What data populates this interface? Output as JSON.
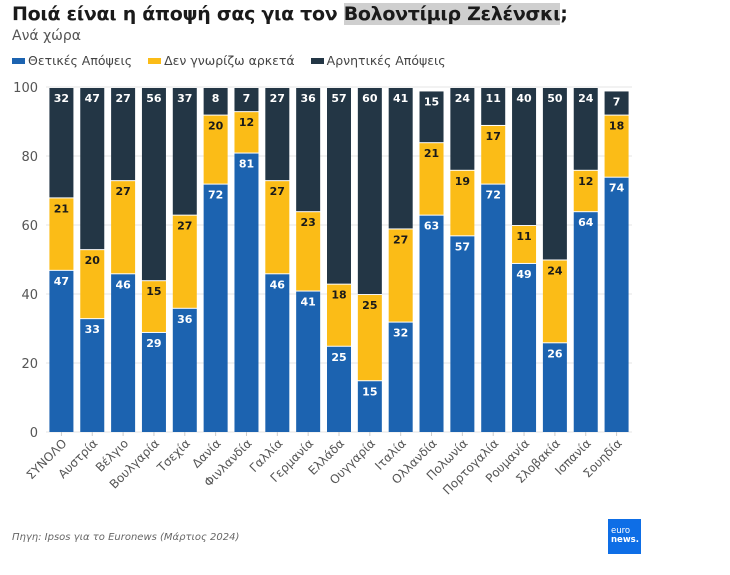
{
  "header": {
    "title_prefix": "Ποιά είναι η άποψή σας για τον ",
    "title_highlight": "Βολοντίμιρ Ζελένσκι",
    "title_suffix": ";",
    "subtitle": "Ανά χώρα"
  },
  "colors": {
    "positive": "#1c63b0",
    "unknown": "#fbbc17",
    "negative": "#233645",
    "grid": "#e6e6e6",
    "axis_text": "#555555"
  },
  "chart_data": {
    "type": "bar",
    "stacked": true,
    "title": "Ποιά είναι η άποψή σας για τον Βολοντίμιρ Ζελένσκι;",
    "subtitle": "Ανά χώρα",
    "xlabel": "",
    "ylabel": "",
    "ylim": [
      0,
      100
    ],
    "yticks": [
      0,
      20,
      40,
      60,
      80,
      100
    ],
    "grid": true,
    "legend_position": "top-left",
    "categories": [
      "ΣΥΝΟΛΟ",
      "Αυστρία",
      "Βέλγιο",
      "Βουλγαρία",
      "Τσεχία",
      "Δανία",
      "Φινλανδία",
      "Γαλλία",
      "Γερμανία",
      "Ελλάδα",
      "Ουγγαρία",
      "Ιταλία",
      "Ολλανδία",
      "Πολωνία",
      "Πορτογαλία",
      "Ρουμανία",
      "Σλοβακία",
      "Ισπανία",
      "Σουηδία"
    ],
    "series": [
      {
        "name": "Θετικές Απόψεις",
        "color": "#1c63b0",
        "label_color": "#ffffff",
        "values": [
          47,
          33,
          46,
          29,
          36,
          72,
          81,
          46,
          41,
          25,
          15,
          32,
          63,
          57,
          72,
          49,
          26,
          64,
          74
        ]
      },
      {
        "name": "Δεν γνωρίζω αρκετά",
        "color": "#fbbc17",
        "label_color": "#1a1a1a",
        "values": [
          21,
          20,
          27,
          15,
          27,
          20,
          12,
          27,
          23,
          18,
          25,
          27,
          21,
          19,
          17,
          11,
          24,
          12,
          18
        ]
      },
      {
        "name": "Αρνητικές Απόψεις",
        "color": "#233645",
        "label_color": "#ffffff",
        "values": [
          32,
          47,
          27,
          56,
          37,
          8,
          7,
          27,
          36,
          57,
          60,
          41,
          15,
          24,
          11,
          40,
          50,
          24,
          7
        ]
      }
    ]
  },
  "footer": {
    "source": "Πηγη: Ipsos για το Euronews (Μάρτιος 2024)",
    "logo_line1": "euro",
    "logo_line2": "news."
  }
}
